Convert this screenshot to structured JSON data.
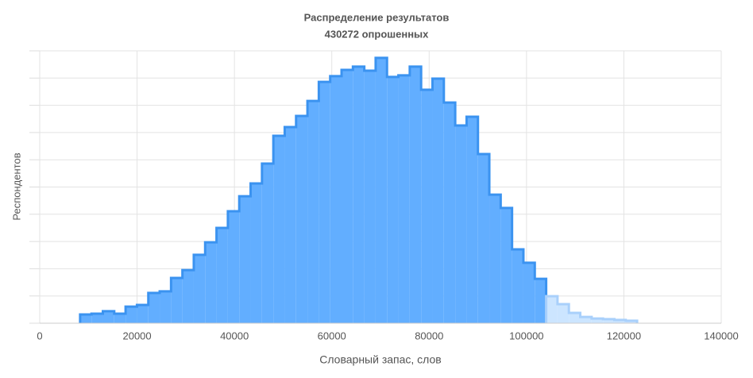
{
  "chart_data": {
    "type": "histogram",
    "title": "Распределение результатов",
    "subtitle": "430272 опрошенных",
    "x_label": "Словарный запас, слов",
    "y_label": "Респондентов",
    "xlim": [
      0,
      140000
    ],
    "xticks": [
      0,
      20000,
      40000,
      60000,
      80000,
      100000,
      120000,
      140000
    ],
    "ylim": [
      0,
      10
    ],
    "yticks": [
      0,
      1,
      2,
      3,
      4,
      5,
      6,
      7,
      8,
      9,
      10
    ],
    "y_tick_labels": false,
    "grid": true,
    "series": [
      {
        "color": "#62aeff",
        "edge_color": "#3b93f0",
        "bins": [
          8300,
          10635,
          12970,
          15305,
          17640,
          19975,
          22310,
          24645,
          26980,
          29315,
          31650,
          33985,
          36320,
          38655,
          40990,
          43325,
          45660,
          47995,
          50330,
          52665,
          55000,
          57335,
          59670,
          62005,
          64340,
          66675,
          69010,
          71345,
          73680,
          76015,
          78350,
          80685,
          83020,
          85355,
          87690,
          90025,
          92360,
          94695,
          97030,
          99365,
          101700,
          104035
        ],
        "counts": [
          0.32,
          0.35,
          0.44,
          0.35,
          0.61,
          0.67,
          1.11,
          1.17,
          1.66,
          1.95,
          2.51,
          2.97,
          3.5,
          4.11,
          4.66,
          5.13,
          5.86,
          6.88,
          7.2,
          7.61,
          8.16,
          8.86,
          9.07,
          9.3,
          9.42,
          9.27,
          9.74,
          9.04,
          9.1,
          9.42,
          8.57,
          8.98,
          8.1,
          7.26,
          7.58,
          6.21,
          4.72,
          4.23,
          2.71,
          2.22,
          1.63
        ]
      },
      {
        "color": "#cce5ff",
        "edge_color": "#a9d0fb",
        "bins": [
          104035,
          106370,
          108705,
          111040,
          113375,
          115710,
          118045,
          120380,
          122715
        ],
        "counts": [
          0.99,
          0.7,
          0.38,
          0.23,
          0.17,
          0.15,
          0.12,
          0.09
        ]
      }
    ]
  }
}
